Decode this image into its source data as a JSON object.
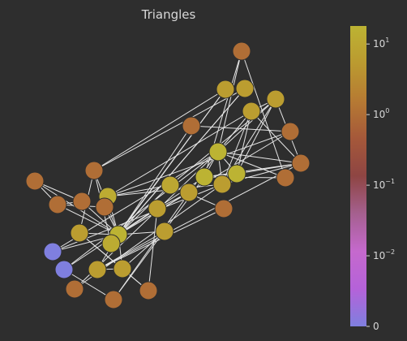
{
  "chart_data": {
    "type": "network",
    "title": "Triangles",
    "node_values": [
      45,
      18,
      18,
      18,
      12,
      12,
      10,
      6,
      6,
      6,
      6,
      6,
      6,
      6,
      6,
      6,
      6,
      6,
      1,
      1,
      1,
      1,
      1,
      1,
      1,
      1,
      1,
      1,
      1,
      1,
      1,
      1,
      0,
      0
    ],
    "edges": [
      [
        0,
        4
      ],
      [
        0,
        5
      ],
      [
        0,
        6
      ],
      [
        0,
        7
      ],
      [
        0,
        8
      ],
      [
        0,
        9
      ],
      [
        0,
        10
      ],
      [
        0,
        11
      ],
      [
        0,
        12
      ],
      [
        0,
        13
      ],
      [
        0,
        14
      ],
      [
        0,
        18
      ],
      [
        0,
        19
      ],
      [
        0,
        20
      ],
      [
        0,
        21
      ],
      [
        0,
        22
      ],
      [
        0,
        23
      ],
      [
        0,
        24
      ],
      [
        4,
        13
      ],
      [
        4,
        14
      ],
      [
        4,
        24
      ],
      [
        5,
        6
      ],
      [
        5,
        15
      ],
      [
        5,
        16
      ],
      [
        6,
        7
      ],
      [
        6,
        17
      ],
      [
        6,
        25
      ],
      [
        7,
        8
      ],
      [
        9,
        10
      ],
      [
        9,
        29
      ],
      [
        10,
        11
      ],
      [
        10,
        12
      ],
      [
        10,
        29
      ],
      [
        11,
        12
      ],
      [
        11,
        25
      ],
      [
        13,
        24
      ],
      [
        14,
        24
      ],
      [
        1,
        3
      ],
      [
        1,
        2
      ],
      [
        1,
        27
      ],
      [
        1,
        28
      ],
      [
        1,
        30
      ],
      [
        1,
        31
      ],
      [
        1,
        32
      ],
      [
        1,
        33
      ],
      [
        1,
        15
      ],
      [
        1,
        16
      ],
      [
        1,
        17
      ],
      [
        1,
        2
      ],
      [
        1,
        3
      ],
      [
        1,
        26
      ],
      [
        2,
        3
      ],
      [
        2,
        27
      ],
      [
        2,
        28
      ],
      [
        2,
        31
      ],
      [
        2,
        32
      ],
      [
        2,
        26
      ],
      [
        3,
        15
      ],
      [
        3,
        16
      ],
      [
        3,
        17
      ],
      [
        3,
        30
      ],
      [
        3,
        26
      ],
      [
        15,
        16
      ],
      [
        15,
        17
      ],
      [
        15,
        26
      ],
      [
        16,
        17
      ],
      [
        16,
        26
      ],
      [
        17,
        26
      ],
      [
        18,
        19
      ],
      [
        18,
        20
      ],
      [
        19,
        20
      ],
      [
        19,
        21
      ],
      [
        22,
        23
      ],
      [
        23,
        5
      ],
      [
        25,
        6
      ],
      [
        26,
        11
      ],
      [
        27,
        28
      ],
      [
        31,
        32
      ],
      [
        33,
        15
      ],
      [
        32,
        2
      ],
      [
        24,
        9
      ],
      [
        12,
        0
      ],
      [
        0,
        33
      ],
      [
        8,
        29
      ]
    ],
    "colorbar": {
      "scale": "symlog",
      "linthresh": 0.01,
      "range": [
        0,
        18
      ],
      "ticks": [
        {
          "value": 10,
          "base": "10",
          "exp": "1"
        },
        {
          "value": 1,
          "base": "10",
          "exp": "0"
        },
        {
          "value": 0.1,
          "base": "10",
          "exp": "−1"
        },
        {
          "value": 0.01,
          "base": "10",
          "exp": "−2"
        },
        {
          "value": 0,
          "base": "0",
          "exp": ""
        }
      ],
      "colors": [
        "#7f7fdf",
        "#b562d9",
        "#c569cd",
        "#a5608f",
        "#8e4543",
        "#a5583a",
        "#b67a33",
        "#bb9a30",
        "#bcb333"
      ]
    },
    "colors": {
      "background": "#2e2e2e",
      "edge": "#e6e6e6",
      "text": "#d8d8d8"
    }
  }
}
